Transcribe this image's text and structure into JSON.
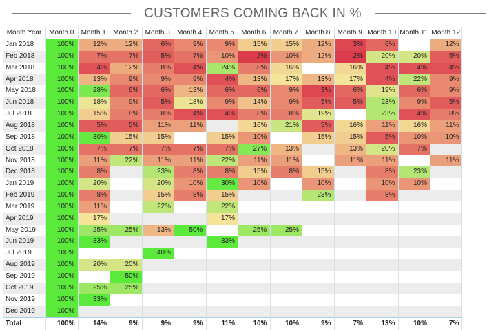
{
  "title": "CUSTOMERS COMING BACK IN %",
  "chart_data": {
    "type": "heatmap",
    "title": "CUSTOMERS COMING BACK IN %",
    "row_header": "Month Year",
    "columns": [
      "Month 0",
      "Month 1",
      "Month 2",
      "Month 3",
      "Month 4",
      "Month 5",
      "Month 6",
      "Month 7",
      "Month 8",
      "Month 9",
      "Month 10",
      "Month 11",
      "Month 12"
    ],
    "rows": [
      "Jan 2018",
      "Feb 2018",
      "Mar 2018",
      "Apr 2018",
      "May 2018",
      "Jun 2018",
      "Jul 2018",
      "Aug 2018",
      "Sep 2018",
      "Oct 2018",
      "Nov 2018",
      "Dec 2018",
      "Jan 2019",
      "Feb 2019",
      "Mar 2019",
      "Apr 2019",
      "May 2019",
      "Jun 2019",
      "Jul 2019",
      "Aug 2019",
      "Sep 2019",
      "Oct 2019",
      "Nov 2019",
      "Dec 2019"
    ],
    "values": [
      [
        100,
        12,
        12,
        6,
        9,
        9,
        15,
        15,
        12,
        3,
        6,
        null,
        12
      ],
      [
        100,
        7,
        7,
        5,
        7,
        10,
        2,
        10,
        12,
        2,
        20,
        20,
        5
      ],
      [
        100,
        4,
        12,
        8,
        4,
        24,
        8,
        16,
        null,
        16,
        4,
        4,
        4
      ],
      [
        100,
        13,
        9,
        9,
        9,
        4,
        13,
        17,
        13,
        17,
        4,
        22,
        9
      ],
      [
        100,
        28,
        6,
        6,
        13,
        6,
        6,
        9,
        3,
        6,
        19,
        6,
        9
      ],
      [
        100,
        18,
        9,
        5,
        18,
        9,
        14,
        9,
        5,
        5,
        23,
        9,
        5
      ],
      [
        100,
        15,
        8,
        8,
        4,
        4,
        8,
        8,
        19,
        null,
        23,
        4,
        8
      ],
      [
        100,
        5,
        5,
        11,
        11,
        null,
        16,
        21,
        5,
        16,
        11,
        16,
        11
      ],
      [
        100,
        30,
        15,
        15,
        null,
        15,
        10,
        null,
        15,
        15,
        5,
        10,
        10
      ],
      [
        100,
        7,
        7,
        7,
        7,
        7,
        27,
        13,
        null,
        13,
        20,
        7,
        null
      ],
      [
        100,
        11,
        22,
        11,
        11,
        22,
        11,
        11,
        null,
        11,
        11,
        null,
        11
      ],
      [
        100,
        8,
        null,
        23,
        8,
        8,
        15,
        8,
        15,
        null,
        8,
        23,
        null
      ],
      [
        100,
        20,
        null,
        20,
        10,
        30,
        10,
        null,
        10,
        null,
        10,
        10,
        null
      ],
      [
        100,
        8,
        null,
        15,
        8,
        15,
        null,
        null,
        23,
        null,
        8,
        null,
        null
      ],
      [
        100,
        11,
        null,
        22,
        null,
        22,
        null,
        null,
        null,
        null,
        null,
        null,
        null
      ],
      [
        100,
        17,
        null,
        null,
        null,
        17,
        null,
        null,
        null,
        null,
        null,
        null,
        null
      ],
      [
        100,
        25,
        25,
        13,
        50,
        null,
        25,
        25,
        null,
        null,
        null,
        null,
        null
      ],
      [
        100,
        33,
        null,
        null,
        null,
        33,
        null,
        null,
        null,
        null,
        null,
        null,
        null
      ],
      [
        100,
        null,
        null,
        40,
        null,
        null,
        null,
        null,
        null,
        null,
        null,
        null,
        null
      ],
      [
        100,
        20,
        20,
        null,
        null,
        null,
        null,
        null,
        null,
        null,
        null,
        null,
        null
      ],
      [
        100,
        null,
        50,
        null,
        null,
        null,
        null,
        null,
        null,
        null,
        null,
        null,
        null
      ],
      [
        100,
        25,
        25,
        null,
        null,
        null,
        null,
        null,
        null,
        null,
        null,
        null,
        null
      ],
      [
        100,
        33,
        null,
        null,
        null,
        null,
        null,
        null,
        null,
        null,
        null,
        null,
        null
      ],
      [
        100,
        null,
        null,
        null,
        null,
        null,
        null,
        null,
        null,
        null,
        null,
        null,
        null
      ]
    ],
    "unit": "%",
    "total_label": "Total",
    "totals": [
      100,
      14,
      9,
      9,
      9,
      11,
      10,
      10,
      9,
      7,
      13,
      10,
      7
    ],
    "colors": {
      "low": "#dc3b4c",
      "mid": "#f5e39a",
      "high": "#5bea3c",
      "stripe": "#ececec",
      "grid": "#aacde6"
    }
  }
}
